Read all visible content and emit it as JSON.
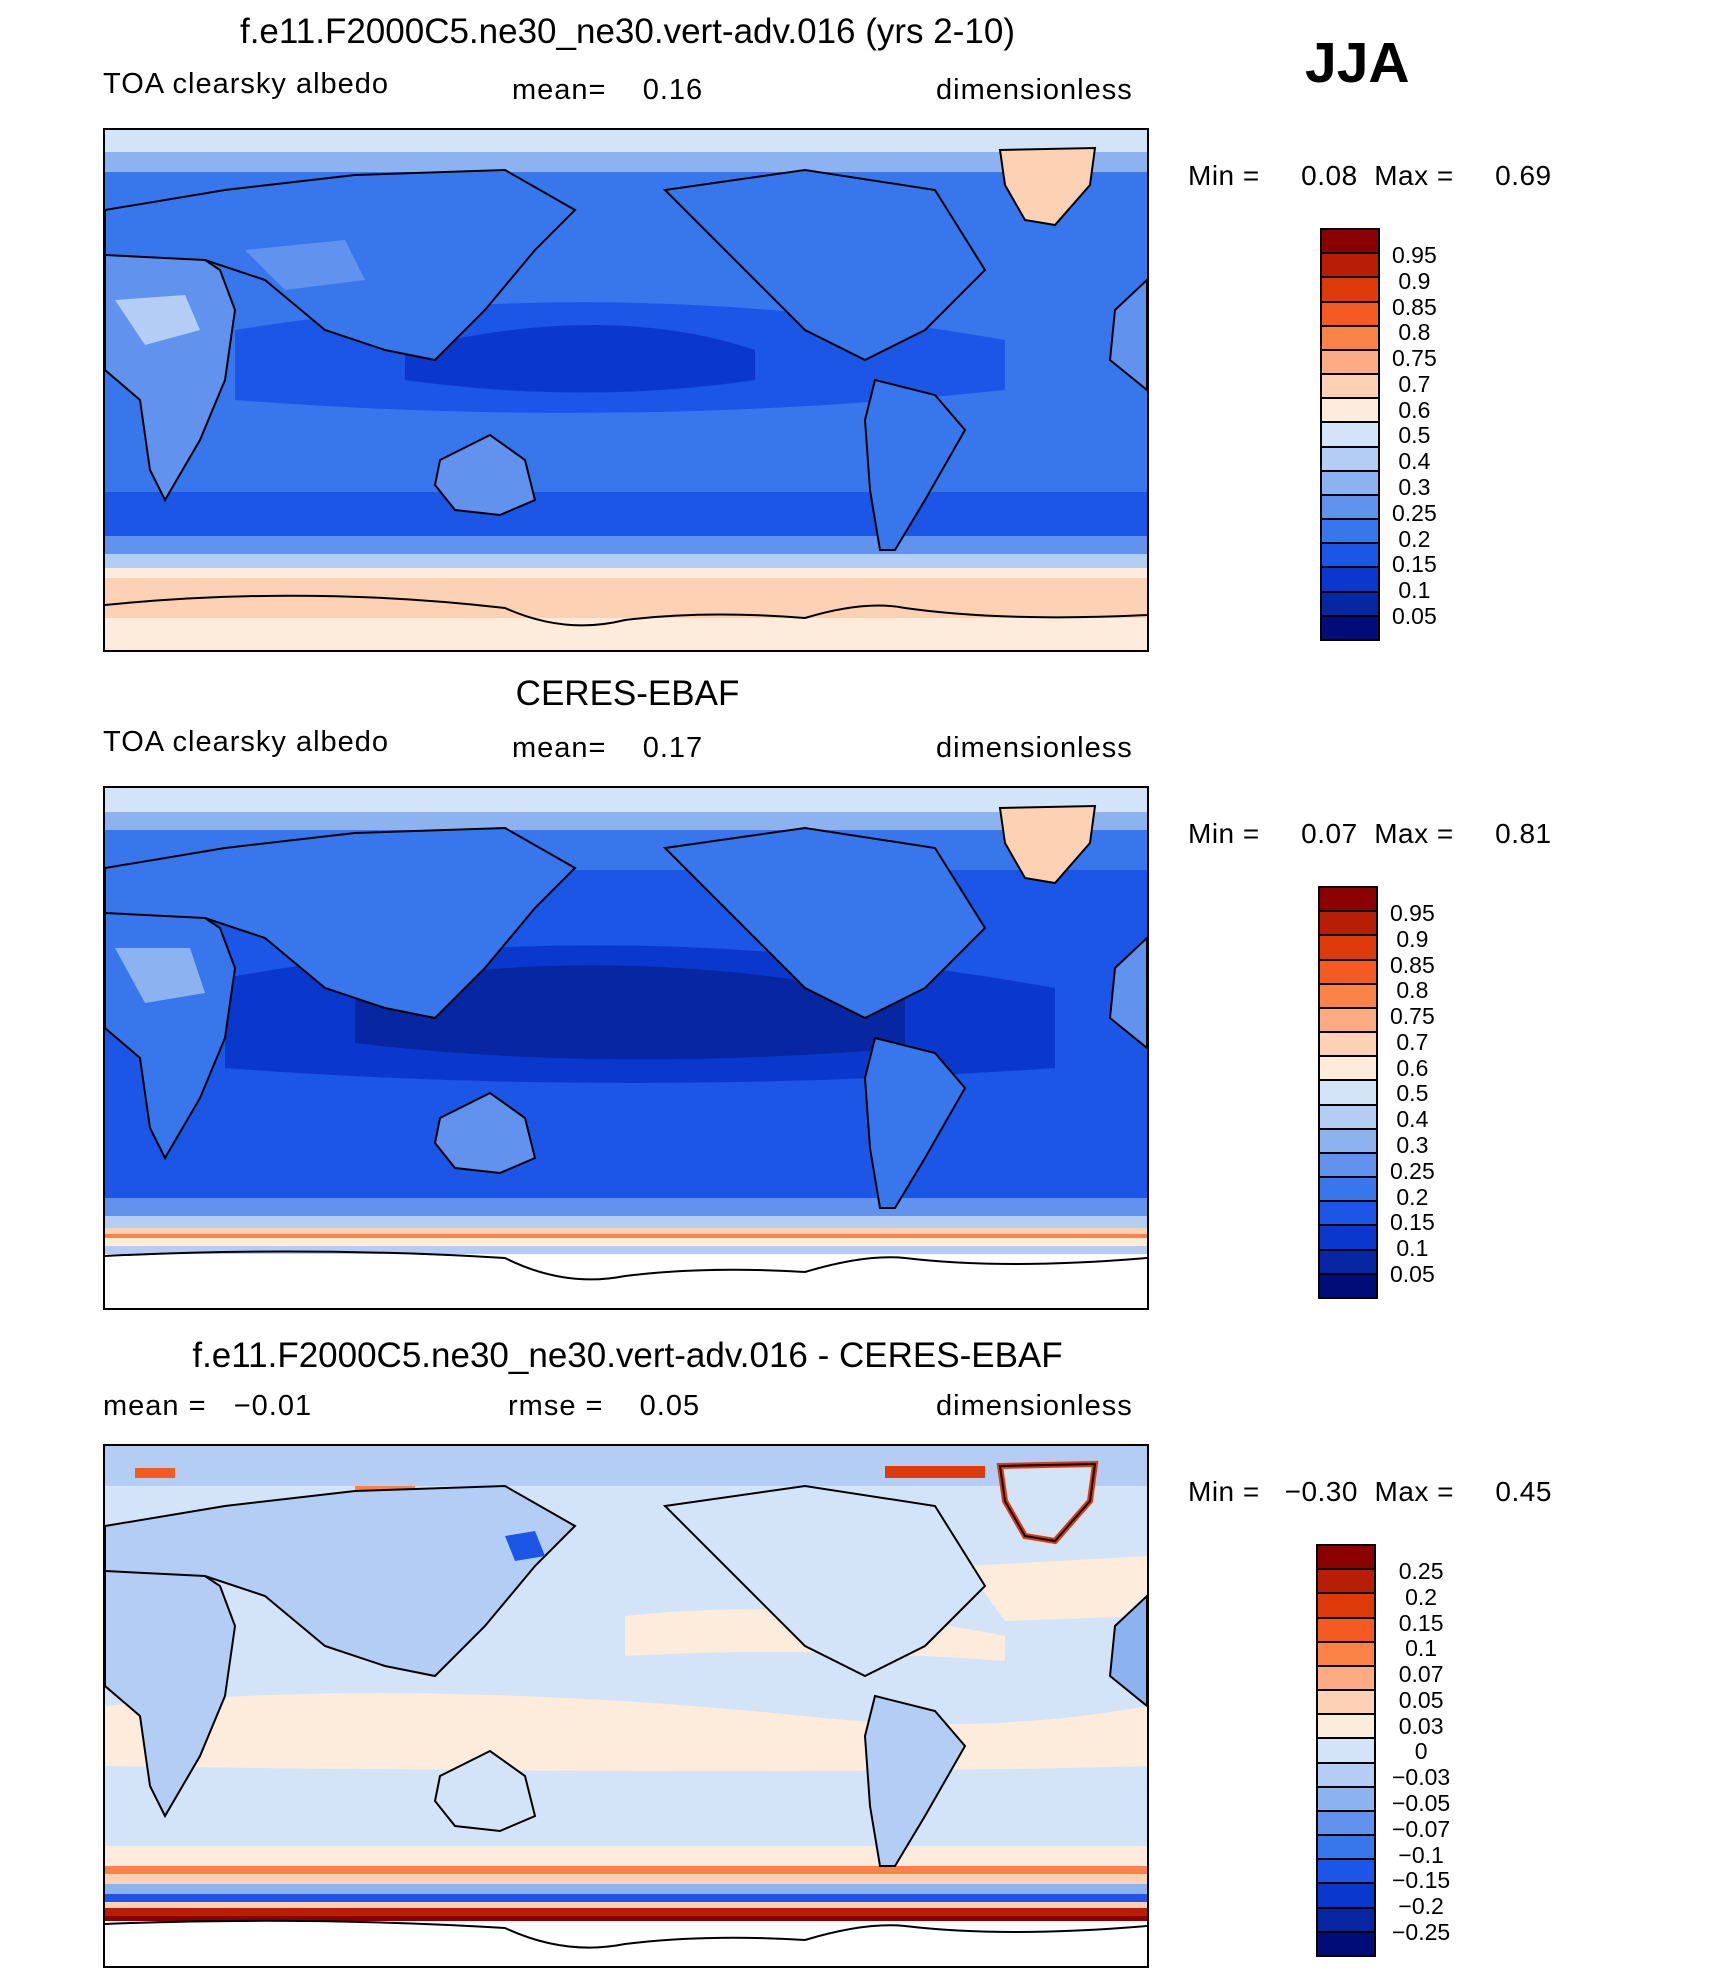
{
  "season": "JJA",
  "panels": [
    {
      "title": "f.e11.F2000C5.ne30_ne30.vert-adv.016 (yrs 2-10)",
      "left_label": "TOA clearsky albedo",
      "center_label": "mean=    0.16",
      "right_label": "dimensionless",
      "minmax": "Min =     0.08  Max =     0.69",
      "stats": {
        "mean": 0.16,
        "min": 0.08,
        "max": 0.69
      },
      "colorbar": {
        "colors": [
          "#8b0000",
          "#b81d06",
          "#df3a0a",
          "#f55a22",
          "#fb8348",
          "#fcab82",
          "#fdd1b4",
          "#fdebdb",
          "#d3e4f9",
          "#b3cdf4",
          "#8cb2f0",
          "#6193ee",
          "#3876ec",
          "#1b56e6",
          "#0b38cc",
          "#0626a2",
          "#010c78"
        ],
        "labels": [
          "0.95",
          "0.9",
          "0.85",
          "0.8",
          "0.75",
          "0.7",
          "0.6",
          "0.5",
          "0.4",
          "0.3",
          "0.25",
          "0.2",
          "0.15",
          "0.1",
          "0.05"
        ]
      }
    },
    {
      "title": "CERES-EBAF",
      "left_label": "TOA clearsky albedo",
      "center_label": "mean=    0.17",
      "right_label": "dimensionless",
      "minmax": "Min =     0.07  Max =     0.81",
      "stats": {
        "mean": 0.17,
        "min": 0.07,
        "max": 0.81
      },
      "colorbar": {
        "colors": [
          "#8b0000",
          "#b81d06",
          "#df3a0a",
          "#f55a22",
          "#fb8348",
          "#fcab82",
          "#fdd1b4",
          "#fdebdb",
          "#d3e4f9",
          "#b3cdf4",
          "#8cb2f0",
          "#6193ee",
          "#3876ec",
          "#1b56e6",
          "#0b38cc",
          "#0626a2",
          "#010c78"
        ],
        "labels": [
          "0.95",
          "0.9",
          "0.85",
          "0.8",
          "0.75",
          "0.7",
          "0.6",
          "0.5",
          "0.4",
          "0.3",
          "0.25",
          "0.2",
          "0.15",
          "0.1",
          "0.05"
        ]
      }
    },
    {
      "title": "f.e11.F2000C5.ne30_ne30.vert-adv.016 - CERES-EBAF",
      "left_label": "mean =   −0.01",
      "center_label": "rmse =    0.05",
      "right_label": "dimensionless",
      "minmax": "Min =   −0.30  Max =     0.45",
      "stats": {
        "mean": -0.01,
        "rmse": 0.05,
        "min": -0.3,
        "max": 0.45
      },
      "colorbar": {
        "colors": [
          "#8b0000",
          "#b81d06",
          "#df3a0a",
          "#f55a22",
          "#fb8348",
          "#fcab82",
          "#fdd1b4",
          "#fdebdb",
          "#d3e4f9",
          "#b3cdf4",
          "#8cb2f0",
          "#6193ee",
          "#3876ec",
          "#1b56e6",
          "#0b38cc",
          "#0626a2",
          "#010c78"
        ],
        "labels": [
          "0.25",
          "0.2",
          "0.15",
          "0.1",
          "0.07",
          "0.05",
          "0.03",
          "0",
          "−0.03",
          "−0.05",
          "−0.07",
          "−0.1",
          "−0.15",
          "−0.2",
          "−0.25"
        ]
      }
    }
  ]
}
